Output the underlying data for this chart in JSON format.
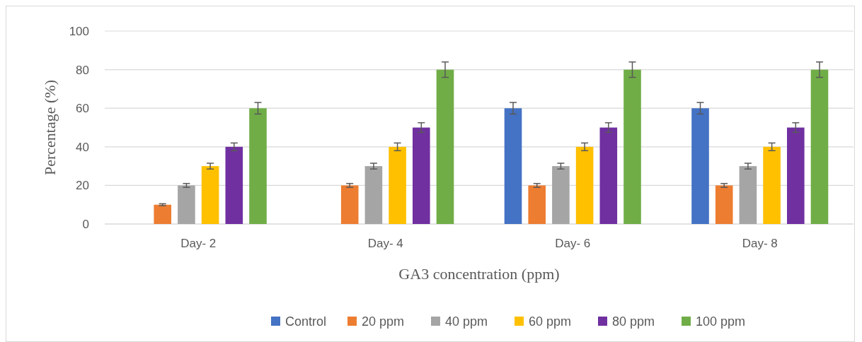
{
  "chart_data": {
    "type": "bar",
    "xlabel": "GA3 concentration (ppm)",
    "ylabel": "Percentage (%)",
    "categories": [
      "Day- 2",
      "Day- 4",
      "Day- 6",
      "Day- 8"
    ],
    "series": [
      {
        "name": "Control",
        "color": "#4472c4",
        "values": [
          0,
          0,
          60,
          60
        ],
        "errors": [
          null,
          null,
          3,
          3
        ]
      },
      {
        "name": "20 ppm",
        "color": "#ed7d31",
        "values": [
          10,
          20,
          20,
          20
        ],
        "errors": [
          0.5,
          1,
          1,
          1
        ]
      },
      {
        "name": "40 ppm",
        "color": "#a5a5a5",
        "values": [
          20,
          30,
          30,
          30
        ],
        "errors": [
          1,
          1.5,
          1.5,
          1.5
        ]
      },
      {
        "name": "60 ppm",
        "color": "#ffc000",
        "values": [
          30,
          40,
          40,
          40
        ],
        "errors": [
          1.5,
          2,
          2,
          2
        ]
      },
      {
        "name": "80 ppm",
        "color": "#7030a0",
        "values": [
          40,
          50,
          50,
          50
        ],
        "errors": [
          2,
          2.5,
          2.5,
          2.5
        ]
      },
      {
        "name": "100 ppm",
        "color": "#70ad47",
        "values": [
          60,
          80,
          80,
          80
        ],
        "errors": [
          3,
          4,
          4,
          4
        ]
      }
    ],
    "ylim": [
      0,
      100
    ],
    "yticks": [
      0,
      20,
      40,
      60,
      80,
      100
    ],
    "grid": "y",
    "legend": "bottom"
  }
}
